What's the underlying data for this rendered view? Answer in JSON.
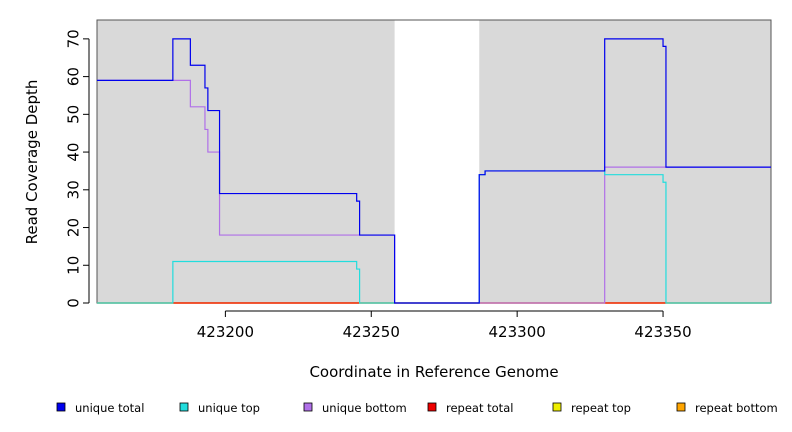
{
  "chart_data": {
    "type": "line",
    "line_style": "step",
    "xlabel": "Coordinate in Reference Genome",
    "ylabel": "Read Coverage Depth",
    "xlim": [
      423156,
      423387
    ],
    "ylim": [
      0,
      75
    ],
    "x_ticks": [
      423200,
      423250,
      423300,
      423350
    ],
    "y_ticks": [
      0,
      10,
      20,
      30,
      40,
      50,
      60,
      70
    ],
    "background": "#d9d9d9",
    "uncovered_regions": [
      [
        423258,
        423287
      ]
    ],
    "legend_position": "bottom",
    "series": [
      {
        "name": "unique total",
        "color": "#0000ee",
        "points": [
          [
            423156,
            59
          ],
          [
            423182,
            59
          ],
          [
            423182,
            70
          ],
          [
            423188,
            70
          ],
          [
            423188,
            63
          ],
          [
            423193,
            63
          ],
          [
            423193,
            57
          ],
          [
            423194,
            57
          ],
          [
            423194,
            51
          ],
          [
            423198,
            51
          ],
          [
            423198,
            29
          ],
          [
            423245,
            29
          ],
          [
            423245,
            27
          ],
          [
            423246,
            27
          ],
          [
            423246,
            18
          ],
          [
            423258,
            18
          ],
          [
            423258,
            0
          ],
          [
            423287,
            0
          ],
          [
            423287,
            34
          ],
          [
            423289,
            34
          ],
          [
            423289,
            35
          ],
          [
            423330,
            35
          ],
          [
            423330,
            70
          ],
          [
            423350,
            70
          ],
          [
            423350,
            68
          ],
          [
            423351,
            68
          ],
          [
            423351,
            36
          ],
          [
            423387,
            36
          ]
        ]
      },
      {
        "name": "unique top",
        "color": "#22dddd",
        "points": [
          [
            423156,
            0
          ],
          [
            423182,
            0
          ],
          [
            423182,
            11
          ],
          [
            423245,
            11
          ],
          [
            423245,
            9
          ],
          [
            423246,
            9
          ],
          [
            423246,
            0
          ],
          [
            423258,
            0
          ],
          [
            423258,
            0
          ],
          [
            423287,
            0
          ],
          [
            423287,
            34
          ],
          [
            423289,
            34
          ],
          [
            423289,
            35
          ],
          [
            423330,
            35
          ],
          [
            423330,
            34
          ],
          [
            423350,
            34
          ],
          [
            423350,
            32
          ],
          [
            423351,
            32
          ],
          [
            423351,
            0
          ],
          [
            423387,
            0
          ]
        ]
      },
      {
        "name": "unique bottom",
        "color": "#b070e8",
        "points": [
          [
            423156,
            59
          ],
          [
            423188,
            59
          ],
          [
            423188,
            52
          ],
          [
            423193,
            52
          ],
          [
            423193,
            46
          ],
          [
            423194,
            46
          ],
          [
            423194,
            40
          ],
          [
            423198,
            40
          ],
          [
            423198,
            18
          ],
          [
            423258,
            18
          ],
          [
            423258,
            0
          ],
          [
            423330,
            0
          ],
          [
            423330,
            36
          ],
          [
            423387,
            36
          ]
        ]
      },
      {
        "name": "repeat total",
        "color": "#ee0000",
        "points": [
          [
            423156,
            0
          ],
          [
            423387,
            0
          ]
        ]
      },
      {
        "name": "repeat top",
        "color": "#eeee00",
        "points": [
          [
            423156,
            0
          ],
          [
            423387,
            0
          ]
        ]
      },
      {
        "name": "repeat bottom",
        "color": "#ffa500",
        "points": [
          [
            423156,
            0
          ],
          [
            423387,
            0
          ]
        ]
      }
    ]
  }
}
